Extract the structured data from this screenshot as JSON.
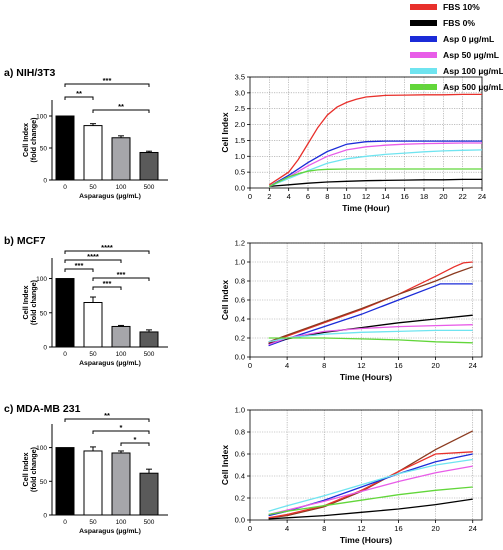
{
  "colors": {
    "fbs10": "#e8302b",
    "fbs0": "#000000",
    "asp0": "#1b2bd8",
    "asp50": "#e85ce8",
    "asp100": "#6fe4f0",
    "asp500": "#62d63a",
    "extra": "#8b3a1f",
    "bar_asp0": "#000000",
    "bar_asp50": "#ffffff",
    "bar_asp100": "#a6a6aa",
    "bar_asp500": "#5a5a5a"
  },
  "legend": [
    {
      "label": "FBS 10%",
      "color": "#e8302b"
    },
    {
      "label": "FBS 0%",
      "color": "#000000"
    },
    {
      "label": "Asp 0 µg/mL",
      "color": "#1b2bd8"
    },
    {
      "label": "Asp 50 µg/mL",
      "color": "#e85ce8"
    },
    {
      "label": "Asp 100 µg/mL",
      "color": "#6fe4f0"
    },
    {
      "label": "Asp 500 µg/mL",
      "color": "#62d63a"
    }
  ],
  "panels": [
    {
      "title": "a) NIH/3T3"
    },
    {
      "title": "b) MCF7"
    },
    {
      "title": "c) MDA-MB 231"
    }
  ],
  "chart_data": [
    {
      "type": "bar",
      "panel": "a",
      "categories": [
        "0",
        "50",
        "100",
        "500"
      ],
      "values": [
        100,
        85,
        66,
        43
      ],
      "errors": [
        0,
        3,
        3,
        2
      ],
      "bar_colors": [
        "#000000",
        "#ffffff",
        "#a6a6aa",
        "#5a5a5a"
      ],
      "xlabel": "Asparagus (µg/mL)",
      "ylabel": "Cell Index (fold change)",
      "yticks": [
        "0",
        "50",
        "100"
      ],
      "ylim": [
        0,
        125
      ],
      "significance": [
        {
          "from": 0,
          "to": 3,
          "label": "***"
        },
        {
          "from": 0,
          "to": 1,
          "label": "**"
        },
        {
          "from": 1,
          "to": 3,
          "label": "**"
        }
      ]
    },
    {
      "type": "line",
      "panel": "a",
      "xlabel": "Time (Hour)",
      "ylabel": "Cell Index",
      "xlim": [
        0,
        24
      ],
      "ylim": [
        0,
        3.5
      ],
      "grid": true,
      "xticks": [
        "0",
        "2",
        "4",
        "6",
        "8",
        "10",
        "12",
        "14",
        "16",
        "18",
        "20",
        "22",
        "24"
      ],
      "yticks": [
        "0.0",
        "0.5",
        "1.0",
        "1.5",
        "2.0",
        "2.5",
        "3.0",
        "3.5"
      ],
      "series": [
        {
          "color": "#e8302b",
          "x": [
            2,
            4,
            5,
            6,
            7,
            8,
            9,
            10,
            11,
            12,
            14,
            16,
            18,
            20,
            22,
            24
          ],
          "y": [
            0.1,
            0.5,
            0.9,
            1.4,
            1.9,
            2.3,
            2.55,
            2.7,
            2.8,
            2.87,
            2.92,
            2.93,
            2.94,
            2.94,
            2.95,
            2.95
          ]
        },
        {
          "color": "#000000",
          "x": [
            2,
            4,
            6,
            8,
            10,
            12,
            14,
            16,
            18,
            20,
            22,
            24
          ],
          "y": [
            0.05,
            0.1,
            0.15,
            0.19,
            0.21,
            0.23,
            0.24,
            0.25,
            0.26,
            0.26,
            0.27,
            0.27
          ]
        },
        {
          "color": "#1b2bd8",
          "x": [
            2,
            4,
            6,
            8,
            10,
            12,
            14,
            16,
            18,
            20,
            22,
            24
          ],
          "y": [
            0.05,
            0.4,
            0.8,
            1.15,
            1.38,
            1.46,
            1.48,
            1.48,
            1.48,
            1.48,
            1.48,
            1.48
          ]
        },
        {
          "color": "#e85ce8",
          "x": [
            2,
            4,
            6,
            8,
            10,
            12,
            14,
            16,
            18,
            20,
            22,
            24
          ],
          "y": [
            0.05,
            0.35,
            0.7,
            1.0,
            1.2,
            1.3,
            1.35,
            1.38,
            1.4,
            1.41,
            1.42,
            1.42
          ]
        },
        {
          "color": "#6fe4f0",
          "x": [
            2,
            4,
            6,
            8,
            10,
            12,
            14,
            16,
            18,
            20,
            22,
            24
          ],
          "y": [
            0.05,
            0.3,
            0.55,
            0.78,
            0.92,
            1.0,
            1.06,
            1.1,
            1.14,
            1.17,
            1.19,
            1.2
          ]
        },
        {
          "color": "#62d63a",
          "x": [
            2,
            3,
            4,
            5,
            6,
            7,
            8,
            10,
            12,
            14,
            16,
            18,
            20,
            22,
            24
          ],
          "y": [
            0.05,
            0.2,
            0.35,
            0.45,
            0.53,
            0.57,
            0.59,
            0.6,
            0.6,
            0.6,
            0.6,
            0.6,
            0.6,
            0.6,
            0.6
          ]
        }
      ]
    },
    {
      "type": "bar",
      "panel": "b",
      "categories": [
        "0",
        "50",
        "100",
        "500"
      ],
      "values": [
        100,
        65,
        30,
        22
      ],
      "errors": [
        0,
        8,
        1.5,
        3
      ],
      "bar_colors": [
        "#000000",
        "#ffffff",
        "#a6a6aa",
        "#5a5a5a"
      ],
      "xlabel": "Asparagus (µg/mL)",
      "ylabel": "Cell Index (fold change)",
      "yticks": [
        "0",
        "50",
        "100"
      ],
      "ylim": [
        0,
        130
      ],
      "significance": [
        {
          "from": 0,
          "to": 3,
          "label": "****"
        },
        {
          "from": 0,
          "to": 2,
          "label": "****"
        },
        {
          "from": 0,
          "to": 1,
          "label": "***"
        },
        {
          "from": 1,
          "to": 3,
          "label": "***"
        },
        {
          "from": 1,
          "to": 2,
          "label": "***"
        }
      ]
    },
    {
      "type": "line",
      "panel": "b",
      "xlabel": "Time (Hours)",
      "ylabel": "Cell Index",
      "xlim": [
        0,
        25
      ],
      "ylim": [
        0,
        1.2
      ],
      "grid": true,
      "xticks": [
        "0",
        "4",
        "8",
        "12",
        "16",
        "20",
        "24"
      ],
      "yticks": [
        "0.0",
        "0.2",
        "0.4",
        "0.6",
        "0.8",
        "1.0",
        "1.2"
      ],
      "series": [
        {
          "color": "#e8302b",
          "x": [
            2,
            4,
            8,
            12,
            16,
            20,
            22,
            23,
            24
          ],
          "y": [
            0.15,
            0.22,
            0.36,
            0.5,
            0.66,
            0.85,
            0.95,
            0.99,
            1.0
          ]
        },
        {
          "color": "#8b3a1f",
          "x": [
            2,
            4,
            8,
            12,
            16,
            20,
            22,
            24
          ],
          "y": [
            0.16,
            0.23,
            0.37,
            0.51,
            0.66,
            0.8,
            0.88,
            0.95
          ]
        },
        {
          "color": "#1b2bd8",
          "x": [
            2,
            4,
            8,
            12,
            16,
            20,
            20.5,
            24
          ],
          "y": [
            0.12,
            0.19,
            0.32,
            0.45,
            0.6,
            0.75,
            0.77,
            0.77
          ]
        },
        {
          "color": "#000000",
          "x": [
            2,
            4,
            8,
            12,
            16,
            20,
            24
          ],
          "y": [
            0.14,
            0.19,
            0.26,
            0.31,
            0.36,
            0.4,
            0.44
          ]
        },
        {
          "color": "#e85ce8",
          "x": [
            2,
            4,
            8,
            12,
            16,
            20,
            24
          ],
          "y": [
            0.13,
            0.2,
            0.27,
            0.3,
            0.32,
            0.33,
            0.34
          ]
        },
        {
          "color": "#6fe4f0",
          "x": [
            2,
            4,
            8,
            12,
            16,
            20,
            24
          ],
          "y": [
            0.16,
            0.2,
            0.24,
            0.26,
            0.27,
            0.28,
            0.28
          ]
        },
        {
          "color": "#62d63a",
          "x": [
            2,
            4,
            8,
            12,
            16,
            20,
            24
          ],
          "y": [
            0.2,
            0.2,
            0.2,
            0.19,
            0.18,
            0.16,
            0.15
          ]
        }
      ]
    },
    {
      "type": "bar",
      "panel": "c",
      "categories": [
        "0",
        "50",
        "100",
        "500"
      ],
      "values": [
        100,
        95,
        92,
        62
      ],
      "errors": [
        0,
        6,
        3,
        6
      ],
      "bar_colors": [
        "#000000",
        "#ffffff",
        "#a6a6aa",
        "#5a5a5a"
      ],
      "xlabel": "Asparagus (µg/mL)",
      "ylabel": "Cell Index (fold change)",
      "yticks": [
        "0",
        "50",
        "100"
      ],
      "ylim": [
        0,
        135
      ],
      "significance": [
        {
          "from": 0,
          "to": 3,
          "label": "**"
        },
        {
          "from": 1,
          "to": 3,
          "label": "*"
        },
        {
          "from": 2,
          "to": 3,
          "label": "*"
        }
      ]
    },
    {
      "type": "line",
      "panel": "c",
      "xlabel": "Time (Hours)",
      "ylabel": "Cell Index",
      "xlim": [
        0,
        25
      ],
      "ylim": [
        0,
        1.0
      ],
      "grid": true,
      "xticks": [
        "0",
        "4",
        "8",
        "12",
        "16",
        "20",
        "24"
      ],
      "yticks": [
        "0.0",
        "0.2",
        "0.4",
        "0.6",
        "0.8",
        "1.0"
      ],
      "series": [
        {
          "color": "#8b3a1f",
          "x": [
            2,
            4,
            8,
            12,
            16,
            20,
            24
          ],
          "y": [
            0.02,
            0.04,
            0.12,
            0.26,
            0.44,
            0.64,
            0.81
          ]
        },
        {
          "color": "#e8302b",
          "x": [
            2,
            4,
            8,
            12,
            16,
            20,
            24
          ],
          "y": [
            0.02,
            0.05,
            0.13,
            0.27,
            0.44,
            0.6,
            0.62
          ]
        },
        {
          "color": "#1b2bd8",
          "x": [
            2,
            4,
            8,
            12,
            16,
            20,
            24
          ],
          "y": [
            0.04,
            0.08,
            0.18,
            0.3,
            0.42,
            0.53,
            0.6
          ]
        },
        {
          "color": "#6fe4f0",
          "x": [
            2,
            4,
            8,
            12,
            16,
            20,
            24
          ],
          "y": [
            0.08,
            0.13,
            0.22,
            0.32,
            0.42,
            0.5,
            0.55
          ]
        },
        {
          "color": "#e85ce8",
          "x": [
            2,
            4,
            8,
            12,
            16,
            20,
            24
          ],
          "y": [
            0.05,
            0.09,
            0.17,
            0.26,
            0.35,
            0.43,
            0.49
          ]
        },
        {
          "color": "#62d63a",
          "x": [
            2,
            4,
            8,
            12,
            16,
            20,
            24
          ],
          "y": [
            0.05,
            0.08,
            0.13,
            0.18,
            0.23,
            0.27,
            0.3
          ]
        },
        {
          "color": "#000000",
          "x": [
            2,
            4,
            8,
            12,
            16,
            20,
            24
          ],
          "y": [
            0.01,
            0.02,
            0.04,
            0.07,
            0.1,
            0.14,
            0.19
          ]
        }
      ]
    }
  ]
}
